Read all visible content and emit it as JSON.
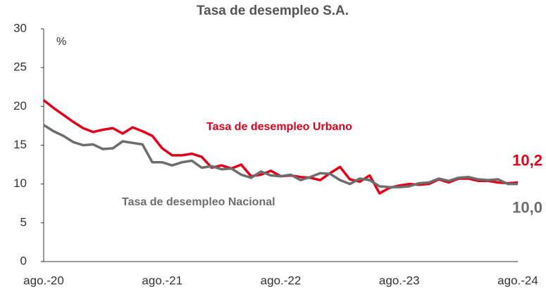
{
  "chart_data": {
    "type": "line",
    "title": "Tasa de desempleo S.A.",
    "y_unit": "%",
    "categories": [
      "ago.-20",
      null,
      null,
      null,
      null,
      null,
      null,
      null,
      null,
      null,
      null,
      null,
      "ago.-21",
      null,
      null,
      null,
      null,
      null,
      null,
      null,
      null,
      null,
      null,
      null,
      "ago.-22",
      null,
      null,
      null,
      null,
      null,
      null,
      null,
      null,
      null,
      null,
      null,
      "ago.-23",
      null,
      null,
      null,
      null,
      null,
      null,
      null,
      null,
      null,
      null,
      null,
      "ago.-24"
    ],
    "series": [
      {
        "name": "Tasa de desempleo Urbano",
        "color": "#e3001b",
        "last_label": "10,2",
        "values": [
          20.8,
          19.8,
          18.9,
          18.0,
          17.2,
          16.7,
          17.0,
          17.2,
          16.5,
          17.3,
          16.8,
          16.2,
          14.6,
          13.7,
          13.7,
          13.9,
          13.5,
          12.1,
          12.4,
          12.0,
          12.5,
          11.0,
          11.2,
          11.7,
          11.0,
          11.1,
          10.9,
          10.8,
          10.5,
          11.4,
          12.2,
          10.6,
          10.3,
          11.1,
          8.8,
          9.5,
          9.8,
          10.0,
          9.9,
          10.0,
          10.6,
          10.2,
          10.7,
          10.7,
          10.4,
          10.4,
          10.2,
          10.1,
          10.2
        ]
      },
      {
        "name": "Tasa de desempleo Nacional",
        "color": "#6d6d6d",
        "last_label": "10,0",
        "values": [
          17.6,
          16.8,
          16.2,
          15.4,
          15.0,
          15.1,
          14.5,
          14.6,
          15.5,
          15.3,
          15.1,
          12.8,
          12.8,
          12.4,
          12.8,
          13.0,
          12.1,
          12.3,
          11.9,
          12.0,
          11.2,
          10.8,
          11.6,
          11.1,
          11.0,
          11.2,
          10.5,
          10.9,
          11.4,
          11.3,
          10.5,
          10.0,
          10.7,
          10.5,
          9.7,
          9.6,
          9.6,
          9.7,
          10.1,
          10.2,
          10.7,
          10.4,
          10.8,
          10.9,
          10.6,
          10.5,
          10.6,
          10.0,
          10.0
        ]
      }
    ],
    "ylim": [
      0,
      30
    ],
    "yticks": [
      0,
      5,
      10,
      15,
      20,
      25,
      30
    ]
  }
}
